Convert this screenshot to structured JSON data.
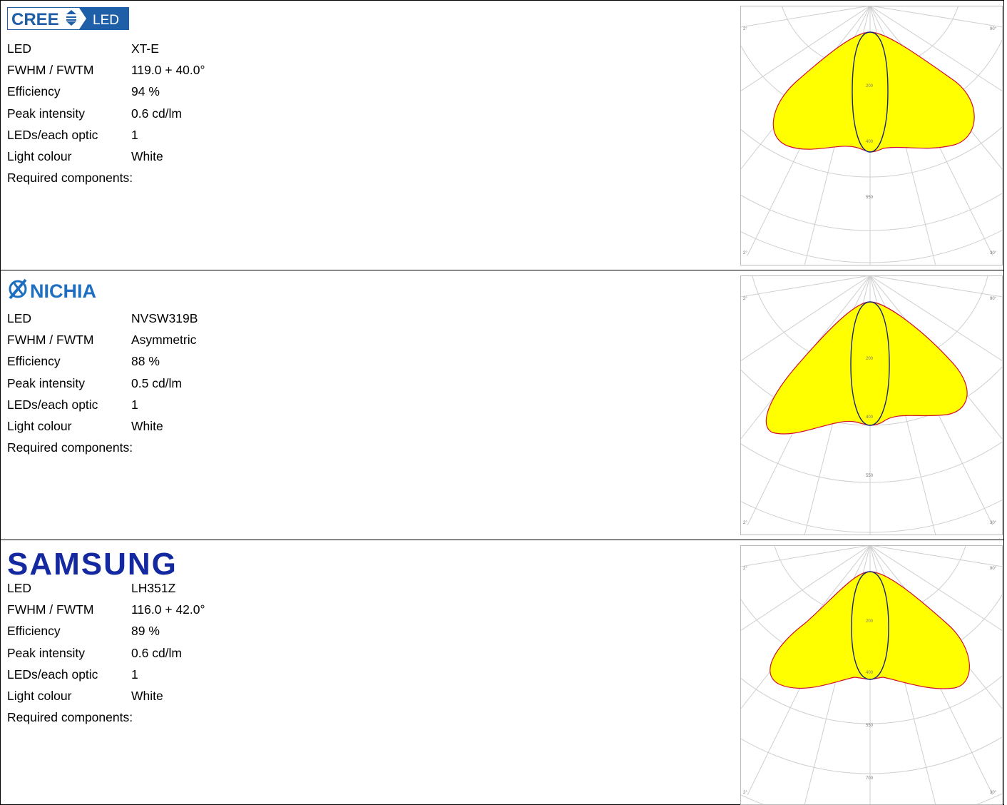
{
  "sections": [
    {
      "brand": "CREE LED",
      "brand_parts": {
        "word1": "CREE",
        "word2": "LED"
      },
      "specs": [
        {
          "label": "LED",
          "value": "XT-E"
        },
        {
          "label": "FWHM / FWTM",
          "value": "119.0 + 40.0°"
        },
        {
          "label": "Efficiency",
          "value": "94 %"
        },
        {
          "label": "Peak intensity",
          "value": "0.6 cd/lm"
        },
        {
          "label": "LEDs/each optic",
          "value": "1"
        },
        {
          "label": "Light colour",
          "value": "White"
        },
        {
          "label": "Required components:",
          "value": ""
        }
      ]
    },
    {
      "brand": "NICHIA",
      "specs": [
        {
          "label": "LED",
          "value": "NVSW319B"
        },
        {
          "label": "FWHM / FWTM",
          "value": "Asymmetric"
        },
        {
          "label": "Efficiency",
          "value": "88 %"
        },
        {
          "label": "Peak intensity",
          "value": "0.5 cd/lm"
        },
        {
          "label": "LEDs/each optic",
          "value": "1"
        },
        {
          "label": "Light colour",
          "value": "White"
        },
        {
          "label": "Required components:",
          "value": ""
        }
      ]
    },
    {
      "brand": "SAMSUNG",
      "specs": [
        {
          "label": "LED",
          "value": "LH351Z"
        },
        {
          "label": "FWHM / FWTM",
          "value": "116.0 + 42.0°"
        },
        {
          "label": "Efficiency",
          "value": "89 %"
        },
        {
          "label": "Peak intensity",
          "value": "0.6 cd/lm"
        },
        {
          "label": "LEDs/each optic",
          "value": "1"
        },
        {
          "label": "Light colour",
          "value": "White"
        },
        {
          "label": "Required components:",
          "value": ""
        }
      ]
    }
  ],
  "colors": {
    "cree_blue": "#1f5fa8",
    "nichia_blue": "#1e6fc0",
    "samsung_blue": "#1428a0",
    "fill_yellow": "#ffff00",
    "curve_red": "#d01030",
    "curve_navy": "#1a237e",
    "grid_gray": "#c8c8c8"
  },
  "chart_data": [
    {
      "type": "polar",
      "description_source": "section 1 light distribution",
      "rings": [
        "200",
        "400",
        "550",
        ""
      ],
      "angle_labels": [
        "90°",
        "75°",
        "60°",
        "45°",
        "30°",
        "15°",
        "0°"
      ]
    },
    {
      "type": "polar",
      "description_source": "section 2 light distribution",
      "rings": [
        "200",
        "400",
        "550"
      ],
      "angle_labels": [
        "90°",
        "75°",
        "60°",
        "45°",
        "30°",
        "15°",
        "0°"
      ]
    },
    {
      "type": "polar",
      "description_source": "section 3 light distribution",
      "rings": [
        "200",
        "400",
        "550",
        "700"
      ],
      "angle_labels": [
        "90°",
        "75°",
        "60°",
        "45°",
        "30°",
        "15°",
        "0°"
      ]
    }
  ]
}
